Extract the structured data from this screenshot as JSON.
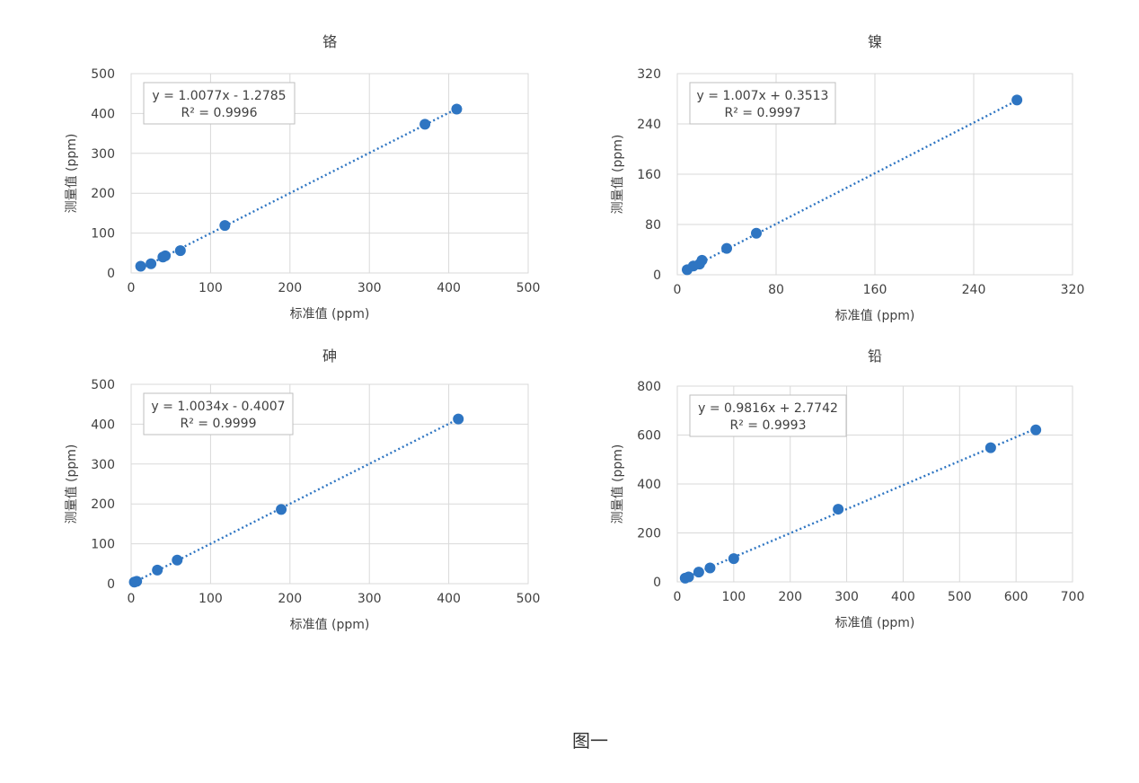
{
  "figure_caption": "图一",
  "chart_data": [
    {
      "type": "scatter",
      "title": "铬",
      "xlabel": "标准值 (ppm)",
      "ylabel": "测量值 (ppm)",
      "xlim": [
        0,
        500
      ],
      "ylim": [
        0,
        500
      ],
      "xticks": [
        0,
        100,
        200,
        300,
        400,
        500
      ],
      "yticks": [
        0,
        100,
        200,
        300,
        400,
        500
      ],
      "grid": true,
      "trendline": {
        "slope": 1.0077,
        "intercept": -1.2785,
        "x_range": [
          12,
          410
        ]
      },
      "equation": "y = 1.0077x - 1.2785",
      "r_squared": "R² = 0.9996",
      "points": [
        [
          12,
          17
        ],
        [
          25,
          23
        ],
        [
          40,
          40
        ],
        [
          43,
          43
        ],
        [
          62,
          56
        ],
        [
          118,
          119
        ],
        [
          370,
          373
        ],
        [
          410,
          411
        ]
      ]
    },
    {
      "type": "scatter",
      "title": "镍",
      "xlabel": "标准值 (ppm)",
      "ylabel": "测量值 (ppm)",
      "xlim": [
        0,
        320
      ],
      "ylim": [
        0,
        320
      ],
      "xticks": [
        0,
        80,
        160,
        240,
        320
      ],
      "yticks": [
        0,
        80,
        160,
        240,
        320
      ],
      "grid": true,
      "trendline": {
        "slope": 1.007,
        "intercept": 0.3513,
        "x_range": [
          7,
          275
        ]
      },
      "equation": "y = 1.007x + 0.3513",
      "r_squared": "R² = 0.9997",
      "points": [
        [
          8,
          8
        ],
        [
          13,
          14
        ],
        [
          18,
          17
        ],
        [
          20,
          23
        ],
        [
          40,
          42
        ],
        [
          64,
          66
        ],
        [
          275,
          278
        ]
      ]
    },
    {
      "type": "scatter",
      "title": "砷",
      "xlabel": "标准值 (ppm)",
      "ylabel": "测量值 (ppm)",
      "xlim": [
        0,
        500
      ],
      "ylim": [
        0,
        500
      ],
      "xticks": [
        0,
        100,
        200,
        300,
        400,
        500
      ],
      "yticks": [
        0,
        100,
        200,
        300,
        400,
        500
      ],
      "grid": true,
      "trendline": {
        "slope": 1.0034,
        "intercept": -0.4007,
        "x_range": [
          3,
          412
        ]
      },
      "equation": "y = 1.0034x - 0.4007",
      "r_squared": "R² = 0.9999",
      "points": [
        [
          4,
          4
        ],
        [
          7,
          6
        ],
        [
          33,
          34
        ],
        [
          58,
          59
        ],
        [
          189,
          186
        ],
        [
          412,
          413
        ]
      ]
    },
    {
      "type": "scatter",
      "title": "铅",
      "xlabel": "标准值 (ppm)",
      "ylabel": "测量值 (ppm)",
      "xlim": [
        0,
        700
      ],
      "ylim": [
        0,
        800
      ],
      "xticks": [
        0,
        100,
        200,
        300,
        400,
        500,
        600,
        700
      ],
      "yticks": [
        0,
        200,
        400,
        600,
        800
      ],
      "grid": true,
      "trendline": {
        "slope": 0.9816,
        "intercept": 2.7742,
        "x_range": [
          12,
          635
        ]
      },
      "equation": "y = 0.9816x + 2.7742",
      "r_squared": "R² = 0.9993",
      "points": [
        [
          14,
          15
        ],
        [
          20,
          20
        ],
        [
          38,
          40
        ],
        [
          58,
          57
        ],
        [
          100,
          95
        ],
        [
          285,
          297
        ],
        [
          555,
          548
        ],
        [
          635,
          621
        ]
      ]
    }
  ]
}
